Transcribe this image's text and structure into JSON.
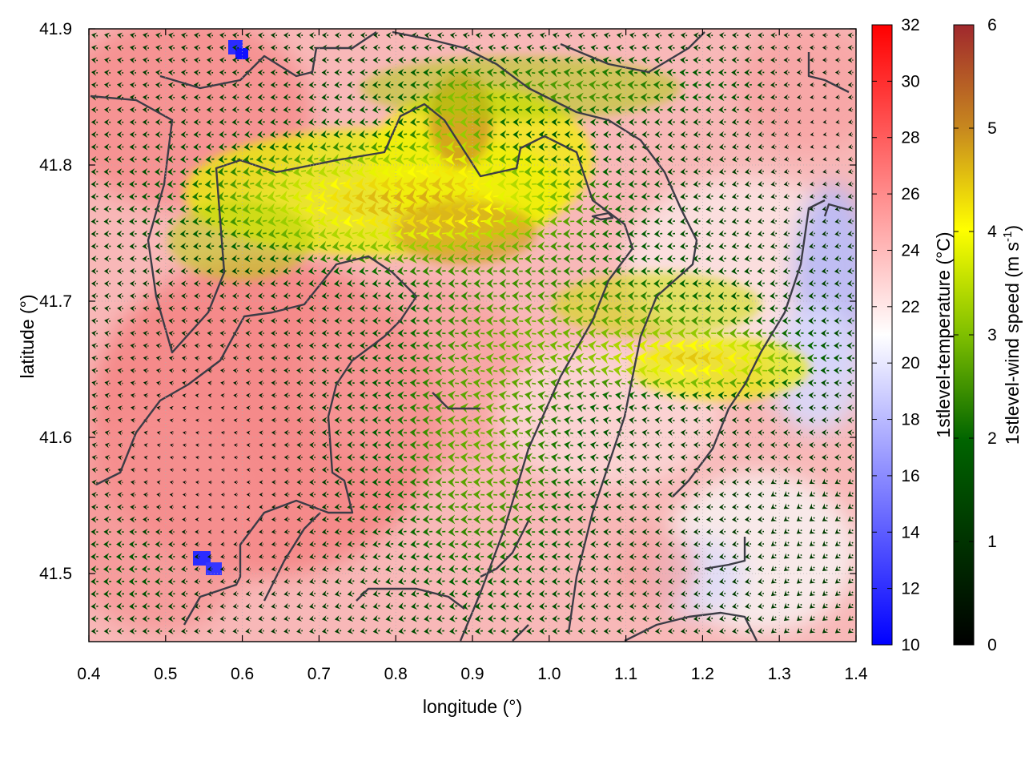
{
  "chart_data": {
    "type": "heatmap",
    "title": "",
    "xlabel": "longitude (°)",
    "ylabel": "latitude (°)",
    "xlim": [
      0.4,
      1.4
    ],
    "ylim": [
      41.45,
      41.9
    ],
    "x_ticks": [
      "0.4",
      "0.5",
      "0.6",
      "0.7",
      "0.8",
      "0.9",
      "1.0",
      "1.1",
      "1.2",
      "1.3",
      "1.4"
    ],
    "y_ticks": [
      "41.5",
      "41.6",
      "41.7",
      "41.8",
      "41.9"
    ],
    "grid": true,
    "overlay": "wind vector arrows colored by wind speed, mostly directed westward; dark gray contour lines",
    "temperature_colorbar": {
      "label": "1stlevel-temperature (°C)",
      "range": [
        10,
        32
      ],
      "ticks": [
        "10",
        "12",
        "14",
        "16",
        "18",
        "20",
        "22",
        "24",
        "26",
        "28",
        "30",
        "32"
      ],
      "colors": [
        "#0000ff",
        "#ffffff",
        "#ff0000"
      ]
    },
    "wind_colorbar": {
      "label_prefix": "1stlevel-wind speed (m s",
      "label_exponent": "-1",
      "label_suffix": ")",
      "range": [
        0,
        6
      ],
      "ticks": [
        "0",
        "1",
        "2",
        "3",
        "4",
        "5",
        "6"
      ],
      "colors": [
        "#000000",
        "#006400",
        "#7fbf00",
        "#ffff00",
        "#c88a1e",
        "#a0282d"
      ]
    },
    "regions": [
      {
        "feature": "warm area",
        "lon": 0.45,
        "lat": 41.85,
        "temperature": 27
      },
      {
        "feature": "warm area",
        "lon": 0.62,
        "lat": 41.62,
        "temperature": 28
      },
      {
        "feature": "cool area",
        "lon": 1.35,
        "lat": 41.72,
        "temperature": 17
      },
      {
        "feature": "cold spot",
        "lon": 0.6,
        "lat": 41.89,
        "temperature": 11
      },
      {
        "feature": "cold spot",
        "lon": 0.56,
        "lat": 41.51,
        "temperature": 11
      },
      {
        "feature": "wind maximum",
        "lon": 0.86,
        "lat": 41.84,
        "wind_speed": 5.6
      },
      {
        "feature": "wind maximum",
        "lon": 0.9,
        "lat": 41.76,
        "wind_speed": 5.0
      },
      {
        "feature": "strong wind band",
        "lon": 1.17,
        "lat": 41.65,
        "wind_speed": 4.0
      }
    ]
  }
}
